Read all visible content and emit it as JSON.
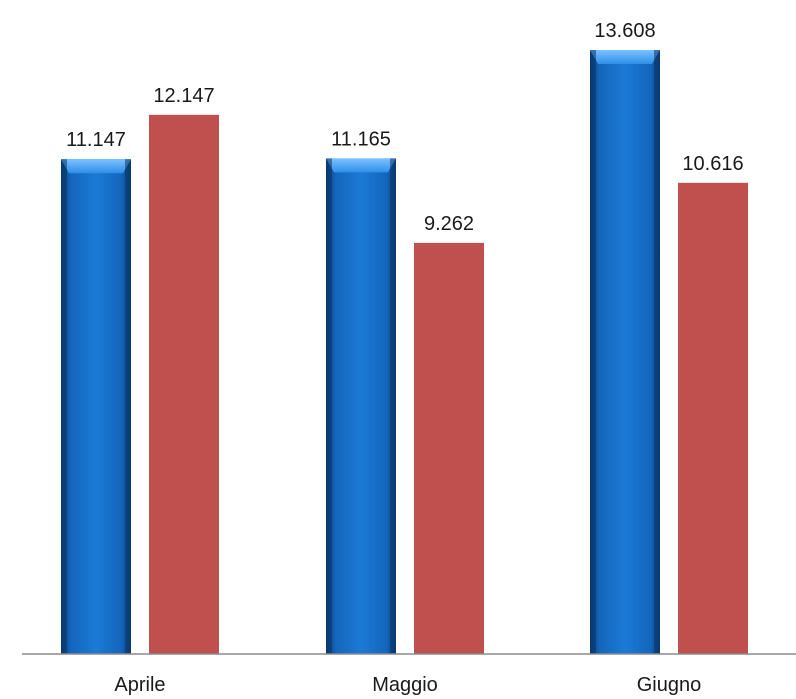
{
  "chart_data": {
    "type": "bar",
    "categories": [
      "Aprile",
      "Maggio",
      "Giugno"
    ],
    "series": [
      {
        "values": [
          11147,
          11165,
          13608
        ],
        "labels": [
          "11.147",
          "11.165",
          "13.608"
        ],
        "color": "#0f6fc6",
        "style": "bevel"
      },
      {
        "values": [
          12147,
          9262,
          10616
        ],
        "labels": [
          "12.147",
          "9.262",
          "10.616"
        ],
        "color": "#c0504d",
        "style": "flat"
      }
    ],
    "ylim": [
      0,
      14000
    ],
    "grid": false,
    "legend": "none"
  }
}
